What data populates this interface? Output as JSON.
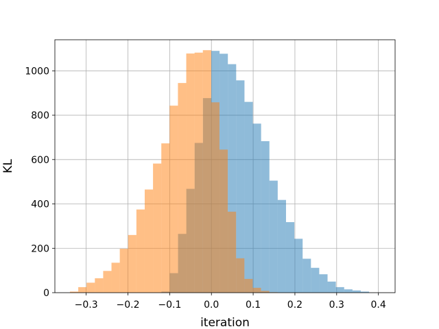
{
  "chart_data": {
    "type": "bar",
    "title": "",
    "xlabel": "iteration",
    "ylabel": "KL",
    "xlim": [
      -0.375,
      0.44
    ],
    "ylim": [
      0,
      1140
    ],
    "xticks": [
      -0.3,
      -0.2,
      -0.1,
      0.0,
      0.1,
      0.2,
      0.3,
      0.4
    ],
    "xtick_labels": [
      "−0.3",
      "−0.2",
      "−0.1",
      "0.0",
      "0.1",
      "0.2",
      "0.3",
      "0.4"
    ],
    "yticks": [
      0,
      200,
      400,
      600,
      800,
      1000
    ],
    "ytick_labels": [
      "0",
      "200",
      "400",
      "600",
      "800",
      "1000"
    ],
    "grid": true,
    "legend": "none",
    "series": [
      {
        "color": "#1f77b4",
        "opacity": 0.5,
        "bin_start": -0.1198,
        "bin_width": 0.0199,
        "counts": [
          5,
          88,
          265,
          468,
          675,
          877,
          1090,
          1077,
          1030,
          957,
          860,
          762,
          683,
          505,
          418,
          318,
          243,
          153,
          112,
          83,
          50,
          25,
          15,
          10,
          5
        ]
      },
      {
        "color": "#ff7f0e",
        "opacity": 0.5,
        "bin_start": -0.3389,
        "bin_width": 0.0199,
        "counts": [
          5,
          25,
          45,
          65,
          98,
          135,
          198,
          260,
          375,
          465,
          582,
          673,
          843,
          945,
          1078,
          1082,
          1093,
          858,
          645,
          365,
          155,
          62,
          22,
          8,
          2
        ]
      }
    ]
  }
}
